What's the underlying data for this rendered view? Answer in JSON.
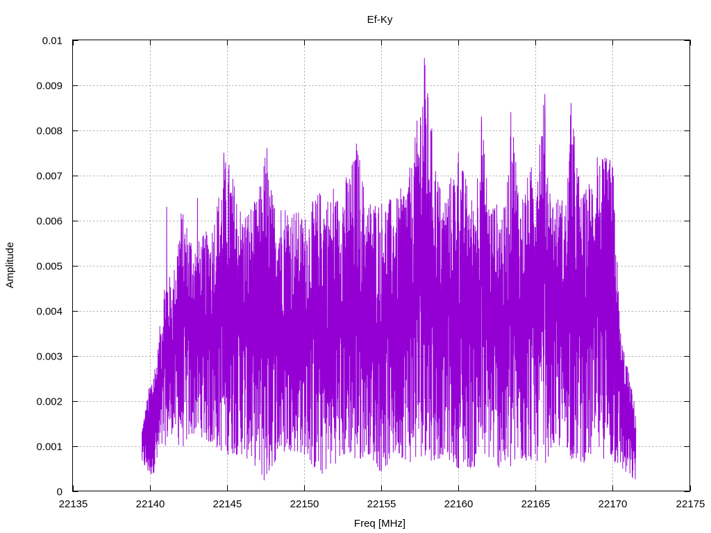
{
  "chart_data": {
    "type": "line",
    "title": "Ef-Ky",
    "xlabel": "Freq [MHz]",
    "ylabel": "Amplitude",
    "xlim": [
      22135,
      22175
    ],
    "ylim": [
      0,
      0.01
    ],
    "x_ticks": [
      22135,
      22140,
      22145,
      22150,
      22155,
      22160,
      22165,
      22170,
      22175
    ],
    "x_tick_labels": [
      "22135",
      "22140",
      "22145",
      "22150",
      "22155",
      "22160",
      "22165",
      "22170",
      "22175"
    ],
    "y_ticks": [
      0,
      0.001,
      0.002,
      0.003,
      0.004,
      0.005,
      0.006,
      0.007,
      0.008,
      0.009,
      0.01
    ],
    "y_tick_labels": [
      "0",
      "0.001",
      "0.002",
      "0.003",
      "0.004",
      "0.005",
      "0.006",
      "0.007",
      "0.008",
      "0.009",
      "0.01"
    ],
    "grid": true,
    "legend": "none",
    "series": [
      {
        "color": "#9400d3",
        "x_start": 22139.5,
        "x_end": 22171.5,
        "envelope": {
          "x": [
            22139.5,
            22140,
            22140.5,
            22141,
            22141.5,
            22142,
            22143,
            22144,
            22145,
            22146,
            22147,
            22147.5,
            22148,
            22149,
            22150,
            22151,
            22152,
            22153,
            22153.5,
            22154,
            22155,
            22156,
            22157,
            22157.8,
            22158.5,
            22159,
            22160,
            22161,
            22161.5,
            22162,
            22163,
            22163.5,
            22164,
            22165,
            22165.5,
            22166,
            22167,
            22167.3,
            22168,
            22169,
            22170,
            22170.5,
            22171,
            22171.5
          ],
          "y_max": [
            0.0014,
            0.0024,
            0.0031,
            0.0049,
            0.0047,
            0.0063,
            0.0055,
            0.0059,
            0.0075,
            0.0062,
            0.0065,
            0.0076,
            0.0065,
            0.0064,
            0.0061,
            0.0067,
            0.0065,
            0.0072,
            0.0077,
            0.0065,
            0.0065,
            0.0065,
            0.0073,
            0.0096,
            0.0074,
            0.0065,
            0.0075,
            0.0064,
            0.0083,
            0.0065,
            0.0063,
            0.0084,
            0.0065,
            0.0075,
            0.0088,
            0.0066,
            0.0065,
            0.0086,
            0.0065,
            0.0074,
            0.0074,
            0.0036,
            0.0027,
            0.0018
          ],
          "y_min": [
            0.0006,
            0.0003,
            0.0005,
            0.001,
            0.0013,
            0.0009,
            0.0013,
            0.001,
            0.0008,
            0.0008,
            0.0005,
            0.0001,
            0.0006,
            0.0009,
            0.0008,
            0.0003,
            0.0006,
            0.0008,
            0.0005,
            0.0009,
            0.0004,
            0.0008,
            0.0006,
            0.0008,
            0.0006,
            0.0008,
            0.0005,
            0.0005,
            0.0007,
            0.0007,
            0.0004,
            0.0004,
            0.0006,
            0.0007,
            0.0005,
            0.0009,
            0.001,
            0.0007,
            0.0006,
            0.0008,
            0.0006,
            0.0005,
            0.0003,
            0.0002
          ]
        },
        "peaks": [
          {
            "x": 22141.1,
            "y": 0.0063
          },
          {
            "x": 22143.1,
            "y": 0.0065
          },
          {
            "x": 22144.8,
            "y": 0.0075
          },
          {
            "x": 22147.6,
            "y": 0.0076
          },
          {
            "x": 22151.9,
            "y": 0.0067
          },
          {
            "x": 22153.4,
            "y": 0.0077
          },
          {
            "x": 22157.8,
            "y": 0.0096
          },
          {
            "x": 22160.0,
            "y": 0.0075
          },
          {
            "x": 22161.5,
            "y": 0.0083
          },
          {
            "x": 22163.4,
            "y": 0.0084
          },
          {
            "x": 22165.6,
            "y": 0.0088
          },
          {
            "x": 22167.3,
            "y": 0.0086
          },
          {
            "x": 22169.0,
            "y": 0.0074
          }
        ]
      }
    ]
  }
}
